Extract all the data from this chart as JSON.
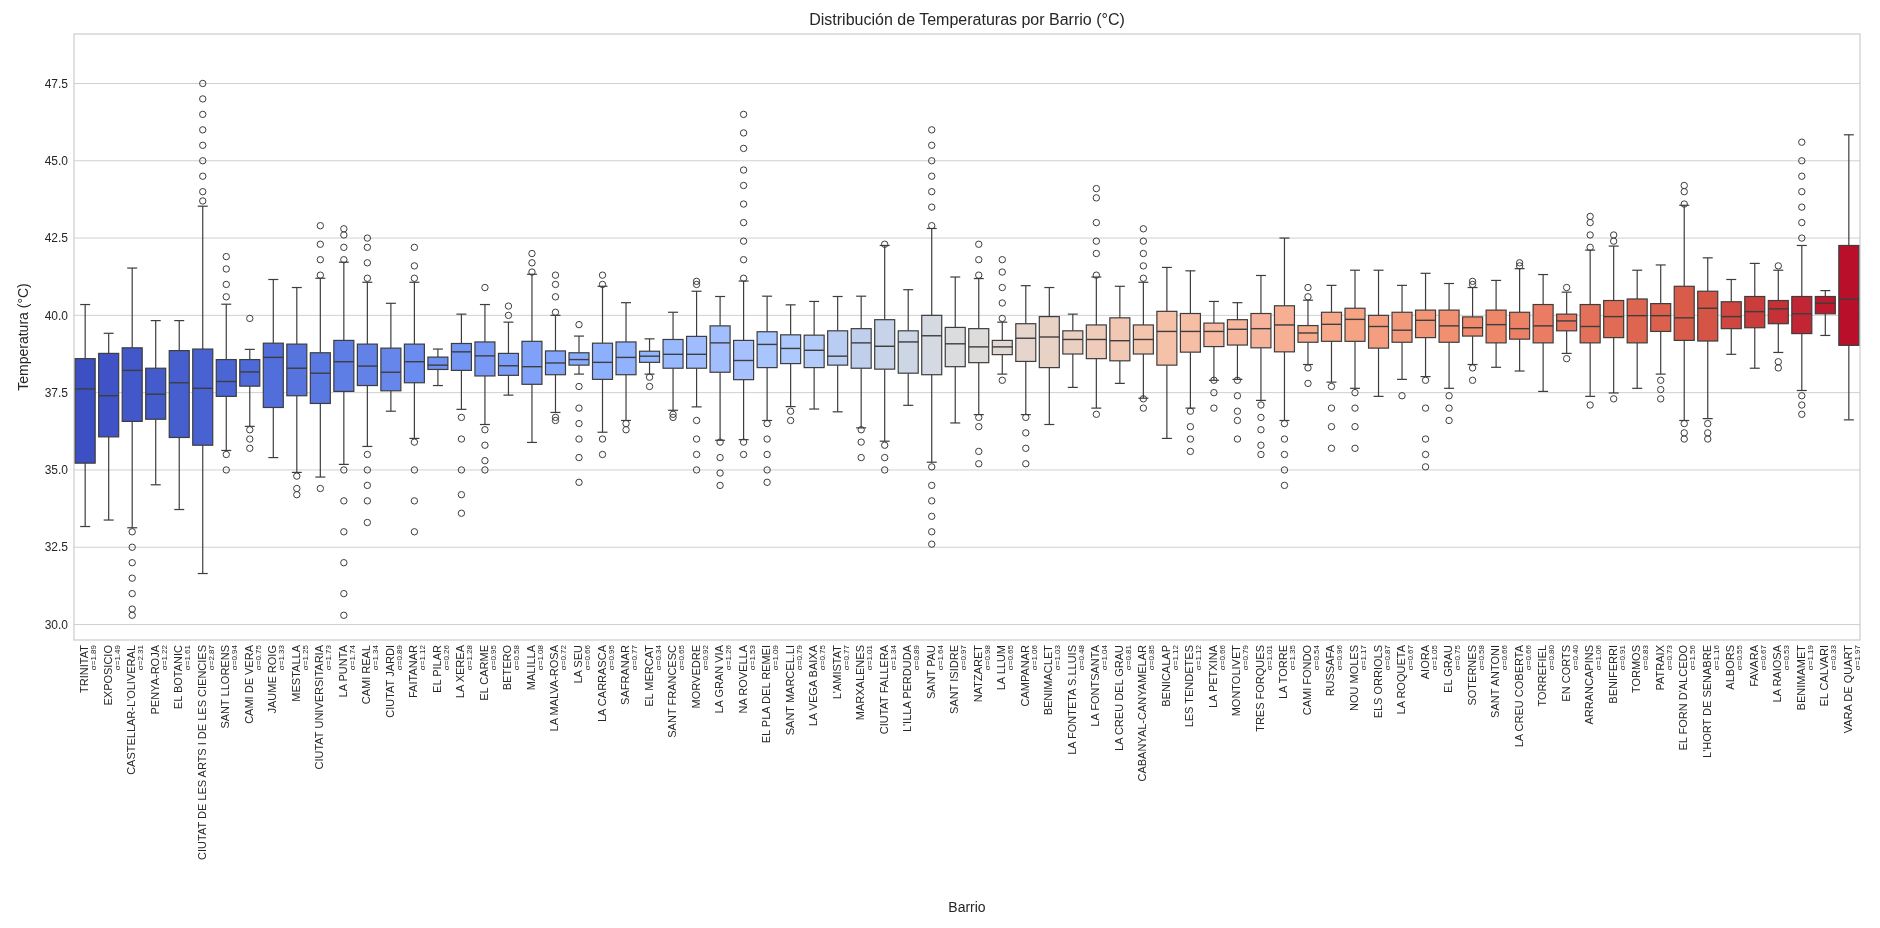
{
  "chart_data": {
    "type": "box",
    "title": "Distribución de Temperaturas por Barrio (°C)",
    "xlabel": "Barrio",
    "ylabel": "Temperatura (°C)",
    "grid": "y",
    "ylim": [
      29.5,
      49.1
    ],
    "yticks": [
      {
        "value": 30,
        "label": "30.0"
      },
      32.5,
      {
        "value": 35,
        "label": "35.0"
      },
      37.5,
      {
        "value": 40,
        "label": "40.0"
      },
      42.5,
      {
        "value": 45,
        "label": "45.0"
      },
      47.5
    ],
    "categories": [
      "TRINITAT",
      "EXPOSICIO",
      "CASTELLAR-L'OLIVERAL",
      "PENYA-ROJA",
      "EL BOTANIC",
      "CIUTAT DE LES ARTS I DE LES CIENCIES",
      "SANT LLORENS",
      "CAMI DE VERA",
      "JAUME ROIG",
      "MESTALLA",
      "CIUTAT UNIVERSITARIA",
      "LA PUNTA",
      "CAMI REAL",
      "CIUTAT JARDI",
      "FAITANAR",
      "EL PILAR",
      "LA XEREA",
      "EL CARME",
      "BETERO",
      "MALILLA",
      "LA MALVA-ROSA",
      "LA SEU",
      "LA CARRASCA",
      "SAFRANAR",
      "EL MERCAT",
      "SANT FRANCESC",
      "MORVEDRE",
      "LA GRAN VIA",
      "NA ROVELLA",
      "EL PLA DEL REMEI",
      "SANT MARCEL.LI",
      "LA VEGA BAIXA",
      "L'AMISTAT",
      "MARXALENES",
      "CIUTAT FALLERA",
      "L'ILLA PERDUDA",
      "SANT PAU",
      "SANT ISIDRE",
      "NATZARET",
      "LA LLUM",
      "CAMPANAR",
      "BENIMACLET",
      "LA FONTETA S.LLUIS",
      "LA FONTSANTA",
      "LA CREU DEL GRAU",
      "CABANYAL-CANYAMELAR",
      "BENICALAP",
      "LES TENDETES",
      "LA PETXINA",
      "MONTOLIVET",
      "TRES FORQUES",
      "LA TORRE",
      "CAMI FONDO",
      "RUSSAFA",
      "NOU MOLES",
      "ELS ORRIOLS",
      "LA ROQUETA",
      "AIORA",
      "EL GRAU",
      "SOTERNES",
      "SANT ANTONI",
      "LA CREU COBERTA",
      "TORREFIEL",
      "EN CORTS",
      "ARRANCAPINS",
      "BENIFERRI",
      "TORMOS",
      "PATRAIX",
      "EL FORN D'ALCEDO",
      "L'HORT DE SENABRE",
      "ALBORS",
      "FAVARA",
      "LA RAIOSA",
      "BENIMAMET",
      "EL CALVARI",
      "VARA DE QUART"
    ],
    "annotations": [
      "σ=1.89",
      "σ=1.49",
      "σ=2.31",
      "σ=1.22",
      "σ=1.61",
      "σ=2.87",
      "σ=0.94",
      "σ=0.75",
      "σ=1.33",
      "σ=1.25",
      "σ=1.73",
      "σ=1.74",
      "σ=1.34",
      "σ=0.89",
      "σ=1.12",
      "σ=0.26",
      "σ=1.28",
      "σ=0.95",
      "σ=0.58",
      "σ=1.08",
      "σ=0.72",
      "σ=0.66",
      "σ=0.95",
      "σ=0.77",
      "σ=0.34",
      "σ=0.65",
      "σ=0.92",
      "σ=1.26",
      "σ=1.53",
      "σ=1.09",
      "σ=0.79",
      "σ=0.75",
      "σ=0.77",
      "σ=1.01",
      "σ=1.34",
      "σ=0.89",
      "σ=1.64",
      "σ=0.97",
      "σ=0.98",
      "σ=0.65",
      "σ=1.06",
      "σ=1.03",
      "σ=0.48",
      "σ=1.04",
      "σ=0.81",
      "σ=0.85",
      "σ=1.12",
      "σ=1.12",
      "σ=0.66",
      "σ=0.79",
      "σ=1.01",
      "σ=1.35",
      "σ=0.54",
      "σ=0.96",
      "σ=1.17",
      "σ=0.87",
      "σ=0.67",
      "σ=1.05",
      "σ=0.75",
      "σ=0.58",
      "σ=0.66",
      "σ=0.66",
      "σ=0.80",
      "σ=0.40",
      "σ=1.06",
      "σ=0.91",
      "σ=0.83",
      "σ=0.73",
      "σ=1.56",
      "σ=1.16",
      "σ=0.55",
      "σ=0.67",
      "σ=0.53",
      "σ=1.19",
      "σ=0.33",
      "σ=1.97"
    ],
    "colors": [
      "#3d50c3",
      "#4053c6",
      "#4257c9",
      "#445bcc",
      "#475ecf",
      "#4962d2",
      "#4b65d5",
      "#4e69d8",
      "#526edb",
      "#5673de",
      "#5a78e2",
      "#5e7de5",
      "#6282e8",
      "#6686eb",
      "#6a8bef",
      "#6e90f1",
      "#7294f3",
      "#7799f5",
      "#7b9df7",
      "#7fa2f8",
      "#84a6fa",
      "#88abfc",
      "#8db0fe",
      "#91b3fe",
      "#94b6fe",
      "#99b9fe",
      "#9ebcfe",
      "#a2befe",
      "#a6c1fd",
      "#a8c5fd",
      "#acc8fc",
      "#b2cbf8",
      "#b9cdf2",
      "#c0d0ec",
      "#c6d3e8",
      "#cdd6e5",
      "#d4d9e2",
      "#dbdcde",
      "#dedcda",
      "#e1d8d3",
      "#e5d5cd",
      "#e8d2c6",
      "#ebcfc0",
      "#eecbba",
      "#f1c8b3",
      "#f4c5ad",
      "#f5c1a8",
      "#f5bea5",
      "#f6baa2",
      "#f6b69e",
      "#f6b39b",
      "#f6af93",
      "#f7ab8d",
      "#f7a889",
      "#f6a384",
      "#f49e7f",
      "#f3997b",
      "#f29476",
      "#f09071",
      "#ef8b6c",
      "#ee8668",
      "#ec8165",
      "#e97c63",
      "#e6765d",
      "#e37159",
      "#e06c55",
      "#de6651",
      "#db614d",
      "#d85c49",
      "#d45445",
      "#cf4740",
      "#cb3c3c",
      "#c63137",
      "#c22634",
      "#bd1a30",
      "#b90f2b"
    ],
    "boxes": [
      {
        "low": 33.17,
        "q1": 35.22,
        "median": 37.62,
        "q3": 38.6,
        "high": 40.35
      },
      {
        "low": 33.38,
        "q1": 36.07,
        "median": 37.4,
        "q3": 38.77,
        "high": 39.42
      },
      {
        "low": 33.13,
        "q1": 36.57,
        "median": 38.22,
        "q3": 38.95,
        "high": 41.53,
        "outliers": [
          33.0,
          32.5,
          32.0,
          31.5,
          31.0,
          30.5,
          30.3
        ]
      },
      {
        "low": 34.52,
        "q1": 36.64,
        "median": 37.45,
        "q3": 38.29,
        "high": 39.83
      },
      {
        "low": 33.72,
        "q1": 36.05,
        "median": 37.82,
        "q3": 38.86,
        "high": 39.83
      },
      {
        "low": 31.65,
        "q1": 35.8,
        "median": 37.64,
        "q3": 38.91,
        "high": 43.53,
        "outliers": [
          43.7,
          44.0,
          44.5,
          45.0,
          45.5,
          46.0,
          46.5,
          47.0,
          47.5
        ]
      },
      {
        "low": 35.63,
        "q1": 37.38,
        "median": 37.86,
        "q3": 38.57,
        "high": 40.36,
        "outliers": [
          40.6,
          41.0,
          41.5,
          41.9,
          35.5,
          35.0
        ]
      },
      {
        "low": 36.41,
        "q1": 37.71,
        "median": 38.17,
        "q3": 38.57,
        "high": 38.9,
        "outliers": [
          39.9,
          36.3,
          36.0,
          35.7
        ]
      },
      {
        "low": 35.4,
        "q1": 37.02,
        "median": 38.64,
        "q3": 39.1,
        "high": 41.16
      },
      {
        "low": 34.92,
        "q1": 37.4,
        "median": 38.29,
        "q3": 39.07,
        "high": 40.9,
        "outliers": [
          34.8,
          34.4,
          34.2
        ]
      },
      {
        "low": 34.77,
        "q1": 37.15,
        "median": 38.13,
        "q3": 38.79,
        "high": 41.2,
        "outliers": [
          41.3,
          41.8,
          42.3,
          42.9,
          34.4
        ]
      },
      {
        "low": 35.18,
        "q1": 37.54,
        "median": 38.5,
        "q3": 39.19,
        "high": 41.72,
        "outliers": [
          41.8,
          42.2,
          42.6,
          42.8,
          35.0,
          34.0,
          33.0,
          32.0,
          31.0,
          30.3
        ]
      },
      {
        "low": 35.76,
        "q1": 37.73,
        "median": 38.36,
        "q3": 39.07,
        "high": 41.07,
        "outliers": [
          41.2,
          41.7,
          42.2,
          42.5,
          35.5,
          35.0,
          34.5,
          34.0,
          33.3
        ]
      },
      {
        "low": 36.9,
        "q1": 37.56,
        "median": 38.16,
        "q3": 38.94,
        "high": 40.39
      },
      {
        "low": 36.02,
        "q1": 37.82,
        "median": 38.5,
        "q3": 39.07,
        "high": 41.07,
        "outliers": [
          41.2,
          41.6,
          42.2,
          35.9,
          35.0,
          34.0,
          33.0
        ]
      },
      {
        "low": 37.73,
        "q1": 38.25,
        "median": 38.39,
        "q3": 38.65,
        "high": 38.91
      },
      {
        "low": 36.96,
        "q1": 38.22,
        "median": 38.82,
        "q3": 39.09,
        "high": 40.04,
        "outliers": [
          36.7,
          36.0,
          35.0,
          34.2,
          33.6
        ]
      },
      {
        "low": 36.47,
        "q1": 38.04,
        "median": 38.69,
        "q3": 39.14,
        "high": 40.35,
        "outliers": [
          40.9,
          36.3,
          35.8,
          35.3,
          35.0
        ]
      },
      {
        "low": 37.42,
        "q1": 38.06,
        "median": 38.37,
        "q3": 38.77,
        "high": 39.78,
        "outliers": [
          40.3,
          40.0
        ]
      },
      {
        "low": 35.89,
        "q1": 37.77,
        "median": 38.34,
        "q3": 39.16,
        "high": 41.33,
        "outliers": [
          41.4,
          41.7,
          42.0
        ]
      },
      {
        "low": 36.86,
        "q1": 38.08,
        "median": 38.46,
        "q3": 38.85,
        "high": 40.0,
        "outliers": [
          40.1,
          40.6,
          41.0,
          41.3,
          36.7,
          36.6
        ]
      },
      {
        "low": 38.1,
        "q1": 38.39,
        "median": 38.57,
        "q3": 38.79,
        "high": 39.33,
        "outliers": [
          39.7,
          37.7,
          37.0,
          36.5,
          36.0,
          35.4,
          34.6
        ]
      },
      {
        "low": 36.22,
        "q1": 37.93,
        "median": 38.48,
        "q3": 39.1,
        "high": 40.94,
        "outliers": [
          41.0,
          41.3,
          36.0,
          35.5
        ]
      },
      {
        "low": 36.6,
        "q1": 38.08,
        "median": 38.64,
        "q3": 39.14,
        "high": 40.41,
        "outliers": [
          36.5,
          36.3
        ]
      },
      {
        "low": 38.1,
        "q1": 38.48,
        "median": 38.68,
        "q3": 38.84,
        "high": 39.24,
        "outliers": [
          38.0,
          37.7
        ]
      },
      {
        "low": 36.93,
        "q1": 38.29,
        "median": 38.74,
        "q3": 39.22,
        "high": 40.1,
        "outliers": [
          36.8,
          36.7
        ]
      },
      {
        "low": 37.04,
        "q1": 38.29,
        "median": 38.74,
        "q3": 39.32,
        "high": 40.78,
        "outliers": [
          41.0,
          41.1,
          36.6,
          36.0,
          35.5,
          35.0
        ]
      },
      {
        "low": 35.96,
        "q1": 38.16,
        "median": 39.11,
        "q3": 39.66,
        "high": 40.61,
        "outliers": [
          35.9,
          35.4,
          34.9,
          34.5
        ]
      },
      {
        "low": 35.98,
        "q1": 37.92,
        "median": 38.54,
        "q3": 39.19,
        "high": 41.11,
        "outliers": [
          41.2,
          41.8,
          42.4,
          43.0,
          43.6,
          44.2,
          44.7,
          45.4,
          45.9,
          46.5,
          35.9,
          35.5
        ]
      },
      {
        "low": 36.6,
        "q1": 38.31,
        "median": 39.06,
        "q3": 39.47,
        "high": 40.62,
        "outliers": [
          36.5,
          36.0,
          35.5,
          35.0,
          34.6
        ]
      },
      {
        "low": 37.05,
        "q1": 38.44,
        "median": 38.93,
        "q3": 39.37,
        "high": 40.34,
        "outliers": [
          36.9,
          36.6
        ]
      },
      {
        "low": 36.97,
        "q1": 38.31,
        "median": 38.87,
        "q3": 39.36,
        "high": 40.45
      },
      {
        "low": 36.88,
        "q1": 38.39,
        "median": 38.68,
        "q3": 39.5,
        "high": 40.61
      },
      {
        "low": 36.36,
        "q1": 38.29,
        "median": 39.11,
        "q3": 39.57,
        "high": 40.62,
        "outliers": [
          36.3,
          35.9,
          35.4
        ]
      },
      {
        "low": 35.93,
        "q1": 38.26,
        "median": 39.0,
        "q3": 39.86,
        "high": 42.26,
        "outliers": [
          42.3,
          35.8,
          35.4,
          35.0
        ]
      },
      {
        "low": 37.09,
        "q1": 38.13,
        "median": 39.14,
        "q3": 39.5,
        "high": 40.83
      },
      {
        "low": 35.25,
        "q1": 38.08,
        "median": 39.34,
        "q3": 40.0,
        "high": 42.81,
        "outliers": [
          42.9,
          43.5,
          44.0,
          44.5,
          45.0,
          45.5,
          46.0,
          35.1,
          34.5,
          34.0,
          33.5,
          33.0,
          32.6
        ]
      },
      {
        "low": 36.52,
        "q1": 38.34,
        "median": 39.08,
        "q3": 39.61,
        "high": 41.24
      },
      {
        "low": 36.79,
        "q1": 38.47,
        "median": 38.98,
        "q3": 39.57,
        "high": 41.19,
        "outliers": [
          41.3,
          41.8,
          42.3,
          36.7,
          36.4,
          35.6,
          35.2
        ]
      },
      {
        "low": 38.1,
        "q1": 38.73,
        "median": 38.98,
        "q3": 39.19,
        "high": 39.78,
        "outliers": [
          39.9,
          40.4,
          40.9,
          41.4,
          41.8,
          37.9
        ]
      },
      {
        "low": 36.79,
        "q1": 38.51,
        "median": 39.26,
        "q3": 39.73,
        "high": 40.96,
        "outliers": [
          36.7,
          36.2,
          35.7,
          35.2
        ]
      },
      {
        "low": 36.47,
        "q1": 38.31,
        "median": 39.3,
        "q3": 39.96,
        "high": 40.9
      },
      {
        "low": 37.67,
        "q1": 38.75,
        "median": 39.22,
        "q3": 39.5,
        "high": 40.04
      },
      {
        "low": 37.0,
        "q1": 38.6,
        "median": 39.22,
        "q3": 39.69,
        "high": 41.24,
        "outliers": [
          41.3,
          42.0,
          42.4,
          43.0,
          43.8,
          44.1,
          36.8
        ]
      },
      {
        "low": 37.8,
        "q1": 38.53,
        "median": 39.18,
        "q3": 39.92,
        "high": 40.94
      },
      {
        "low": 37.32,
        "q1": 38.75,
        "median": 39.22,
        "q3": 39.69,
        "high": 41.07,
        "outliers": [
          41.2,
          41.6,
          42.0,
          42.4,
          42.8,
          37.3,
          37.0
        ]
      },
      {
        "low": 36.02,
        "q1": 38.39,
        "median": 39.48,
        "q3": 40.13,
        "high": 41.55
      },
      {
        "low": 37.0,
        "q1": 38.81,
        "median": 39.48,
        "q3": 40.06,
        "high": 41.44,
        "outliers": [
          36.9,
          36.4,
          36.0,
          35.6
        ]
      },
      {
        "low": 37.9,
        "q1": 38.99,
        "median": 39.48,
        "q3": 39.75,
        "high": 40.45,
        "outliers": [
          37.9,
          37.5,
          37.0
        ]
      },
      {
        "low": 37.93,
        "q1": 39.04,
        "median": 39.55,
        "q3": 39.86,
        "high": 40.41,
        "outliers": [
          37.9,
          37.4,
          36.9,
          36.6,
          36.0
        ]
      },
      {
        "low": 37.25,
        "q1": 38.95,
        "median": 39.57,
        "q3": 40.06,
        "high": 41.29,
        "outliers": [
          37.1,
          36.7,
          36.3,
          35.8,
          35.5
        ]
      },
      {
        "low": 36.6,
        "q1": 38.82,
        "median": 39.69,
        "q3": 40.31,
        "high": 42.5,
        "outliers": [
          36.5,
          36.0,
          35.5,
          35.0,
          34.5
        ]
      },
      {
        "low": 38.41,
        "q1": 39.13,
        "median": 39.43,
        "q3": 39.67,
        "high": 40.49,
        "outliers": [
          40.6,
          40.9,
          38.3,
          37.8
        ]
      },
      {
        "low": 37.84,
        "q1": 39.16,
        "median": 39.71,
        "q3": 40.1,
        "high": 40.97,
        "outliers": [
          37.7,
          37.0,
          36.4,
          35.7
        ]
      },
      {
        "low": 37.64,
        "q1": 39.16,
        "median": 39.87,
        "q3": 40.23,
        "high": 41.46,
        "outliers": [
          37.5,
          37.0,
          36.4,
          35.7
        ]
      },
      {
        "low": 37.38,
        "q1": 38.94,
        "median": 39.64,
        "q3": 40.0,
        "high": 41.46
      },
      {
        "low": 37.93,
        "q1": 39.13,
        "median": 39.52,
        "q3": 40.1,
        "high": 40.97,
        "outliers": [
          37.4
        ]
      },
      {
        "low": 38.02,
        "q1": 39.28,
        "median": 39.84,
        "q3": 40.17,
        "high": 41.36,
        "outliers": [
          37.9,
          37.0,
          36.0,
          35.5,
          35.1
        ]
      },
      {
        "low": 37.64,
        "q1": 39.13,
        "median": 39.66,
        "q3": 40.17,
        "high": 41.03,
        "outliers": [
          37.4,
          37.0,
          36.6
        ]
      },
      {
        "low": 38.41,
        "q1": 39.33,
        "median": 39.6,
        "q3": 39.95,
        "high": 40.9,
        "outliers": [
          41.0,
          41.1,
          38.3,
          37.9
        ]
      },
      {
        "low": 38.32,
        "q1": 39.11,
        "median": 39.7,
        "q3": 40.17,
        "high": 41.13
      },
      {
        "low": 38.2,
        "q1": 39.23,
        "median": 39.57,
        "q3": 40.1,
        "high": 41.51,
        "outliers": [
          41.6,
          41.7
        ]
      },
      {
        "low": 37.54,
        "q1": 39.11,
        "median": 39.66,
        "q3": 40.35,
        "high": 41.32
      },
      {
        "low": 38.77,
        "q1": 39.5,
        "median": 39.82,
        "q3": 40.04,
        "high": 40.75,
        "outliers": [
          40.9,
          38.6
        ]
      },
      {
        "low": 37.38,
        "q1": 39.11,
        "median": 39.64,
        "q3": 40.35,
        "high": 42.11,
        "outliers": [
          42.2,
          42.6,
          43.0,
          43.2,
          37.1
        ]
      },
      {
        "low": 37.49,
        "q1": 39.28,
        "median": 39.96,
        "q3": 40.48,
        "high": 42.24,
        "outliers": [
          42.4,
          42.6,
          37.3
        ]
      },
      {
        "low": 37.64,
        "q1": 39.11,
        "median": 39.99,
        "q3": 40.53,
        "high": 41.46
      },
      {
        "low": 38.1,
        "q1": 39.48,
        "median": 39.99,
        "q3": 40.38,
        "high": 41.63,
        "outliers": [
          37.9,
          37.6,
          37.3
        ]
      },
      {
        "low": 36.6,
        "q1": 39.19,
        "median": 39.92,
        "q3": 40.94,
        "high": 43.56,
        "outliers": [
          43.6,
          44.0,
          44.2,
          36.5,
          36.2,
          36.0
        ]
      },
      {
        "low": 36.66,
        "q1": 39.17,
        "median": 40.23,
        "q3": 40.78,
        "high": 41.86,
        "outliers": [
          36.5,
          36.2,
          36.0
        ]
      },
      {
        "low": 38.74,
        "q1": 39.57,
        "median": 39.96,
        "q3": 40.44,
        "high": 41.16
      },
      {
        "low": 38.29,
        "q1": 39.6,
        "median": 40.12,
        "q3": 40.61,
        "high": 41.68
      },
      {
        "low": 38.8,
        "q1": 39.73,
        "median": 40.21,
        "q3": 40.48,
        "high": 41.46,
        "outliers": [
          41.6,
          38.5,
          38.3
        ]
      },
      {
        "low": 37.57,
        "q1": 39.41,
        "median": 40.05,
        "q3": 40.61,
        "high": 42.26,
        "outliers": [
          42.5,
          43.0,
          43.5,
          44.0,
          44.5,
          45.0,
          45.6,
          37.4,
          37.1,
          36.8
        ]
      },
      {
        "low": 39.35,
        "q1": 40.05,
        "median": 40.39,
        "q3": 40.61,
        "high": 40.8
      },
      {
        "low": 36.62,
        "q1": 39.03,
        "median": 40.52,
        "q3": 42.26,
        "high": 45.84
      }
    ]
  }
}
